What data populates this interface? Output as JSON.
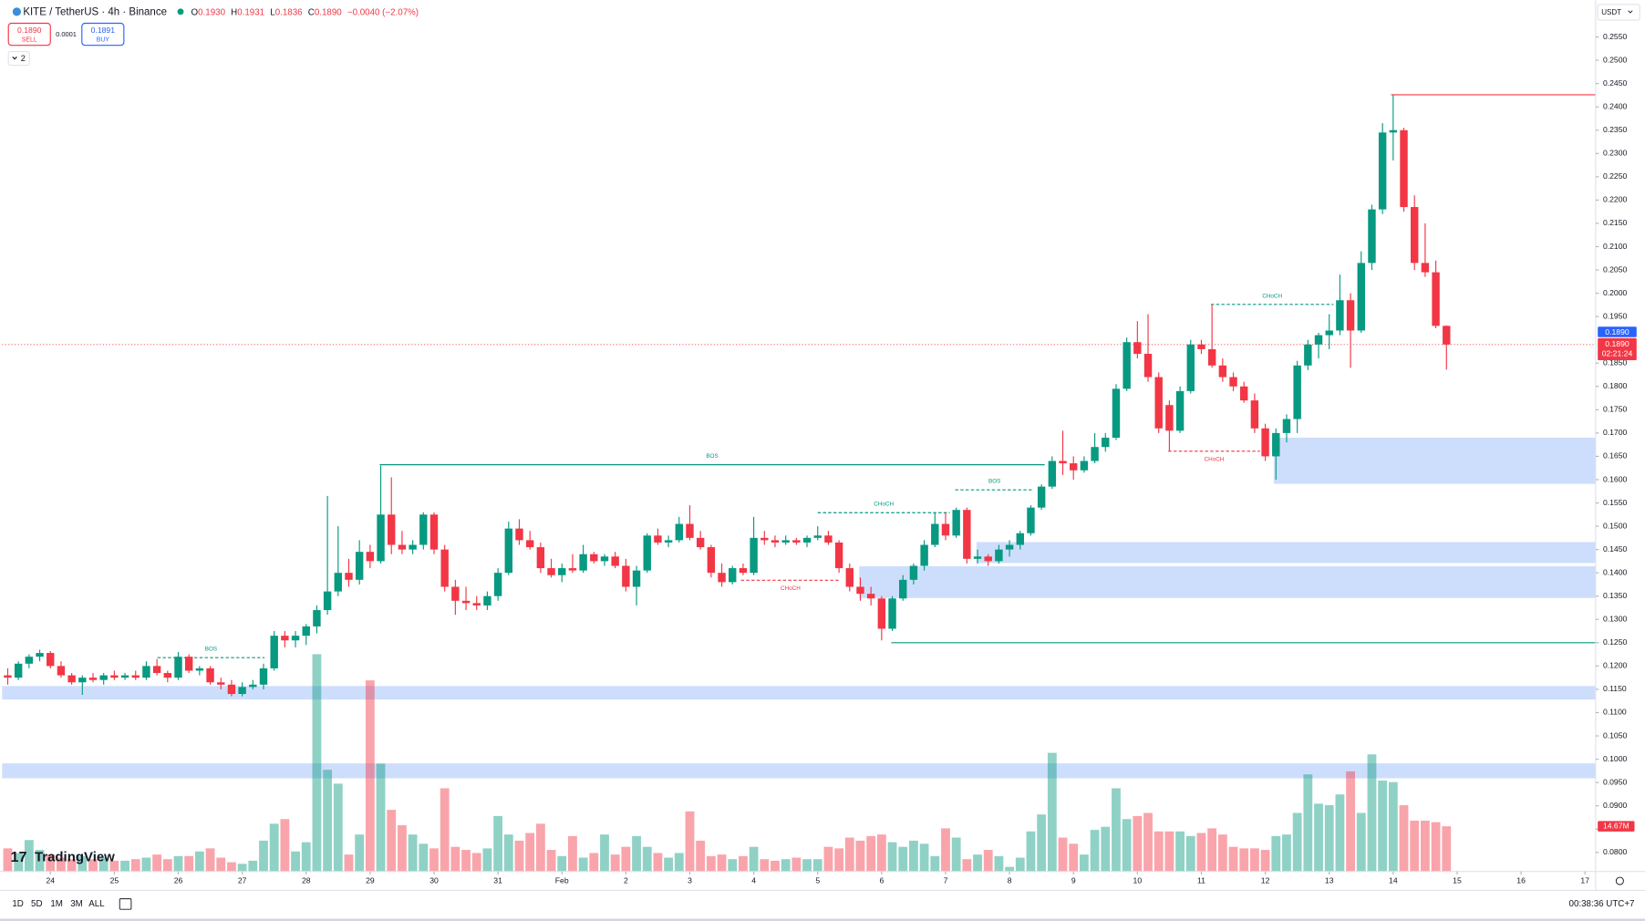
{
  "header": {
    "symbol": "KITE / TetherUS · 4h · Binance",
    "open_key": "O",
    "open": "0.1930",
    "high_key": "H",
    "high": "0.1931",
    "low_key": "L",
    "low": "0.1836",
    "close_key": "C",
    "close": "0.1890",
    "change": "−0.0040 (−2.07%)"
  },
  "trade": {
    "sell_price": "0.1890",
    "sell": "SELL",
    "spread": "0.0001",
    "buy_price": "0.1891",
    "buy": "BUY"
  },
  "indicators": "2",
  "currency": "USDT",
  "logo": "TradingView",
  "toolbar": {
    "ranges": [
      "1D",
      "5D",
      "1M",
      "3M",
      "ALL"
    ],
    "clock": "00:38:36 UTC+7"
  },
  "chart_data": {
    "type": "candlestick",
    "up_color": "#089981",
    "down_color": "#f23645",
    "zone_color": "#bcd3fb",
    "xlim": [
      -0.53,
      149.0
    ],
    "ylim": [
      0.0759,
      0.2629
    ],
    "xticks": [
      {
        "value": 4,
        "label": "24"
      },
      {
        "value": 10,
        "label": "25"
      },
      {
        "value": 16,
        "label": "26"
      },
      {
        "value": 22,
        "label": "27"
      },
      {
        "value": 28,
        "label": "28"
      },
      {
        "value": 34,
        "label": "29"
      },
      {
        "value": 40,
        "label": "30"
      },
      {
        "value": 46,
        "label": "31"
      },
      {
        "value": 52,
        "label": "Feb"
      },
      {
        "value": 58,
        "label": "2"
      },
      {
        "value": 64,
        "label": "3"
      },
      {
        "value": 70,
        "label": "4"
      },
      {
        "value": 76,
        "label": "5"
      },
      {
        "value": 82,
        "label": "6"
      },
      {
        "value": 88,
        "label": "7"
      },
      {
        "value": 94,
        "label": "8"
      },
      {
        "value": 100,
        "label": "9"
      },
      {
        "value": 106,
        "label": "10"
      },
      {
        "value": 112,
        "label": "11"
      },
      {
        "value": 118,
        "label": "12"
      },
      {
        "value": 124,
        "label": "13"
      },
      {
        "value": 130,
        "label": "14"
      },
      {
        "value": 136,
        "label": "15"
      },
      {
        "value": 142,
        "label": "16"
      },
      {
        "value": 148,
        "label": "17"
      }
    ],
    "yticks": [
      {
        "value": 0.255,
        "label": "0.2550"
      },
      {
        "value": 0.25,
        "label": "0.2500"
      },
      {
        "value": 0.245,
        "label": "0.2450"
      },
      {
        "value": 0.24,
        "label": "0.2400"
      },
      {
        "value": 0.235,
        "label": "0.2350"
      },
      {
        "value": 0.23,
        "label": "0.2300"
      },
      {
        "value": 0.225,
        "label": "0.2250"
      },
      {
        "value": 0.22,
        "label": "0.2200"
      },
      {
        "value": 0.215,
        "label": "0.2150"
      },
      {
        "value": 0.21,
        "label": "0.2100"
      },
      {
        "value": 0.205,
        "label": "0.2050"
      },
      {
        "value": 0.2,
        "label": "0.2000"
      },
      {
        "value": 0.195,
        "label": "0.1950"
      },
      {
        "value": 0.185,
        "label": "0.1850"
      },
      {
        "value": 0.18,
        "label": "0.1800"
      },
      {
        "value": 0.175,
        "label": "0.1750"
      },
      {
        "value": 0.17,
        "label": "0.1700"
      },
      {
        "value": 0.165,
        "label": "0.1650"
      },
      {
        "value": 0.16,
        "label": "0.1600"
      },
      {
        "value": 0.155,
        "label": "0.1550"
      },
      {
        "value": 0.15,
        "label": "0.1500"
      },
      {
        "value": 0.145,
        "label": "0.1450"
      },
      {
        "value": 0.14,
        "label": "0.1400"
      },
      {
        "value": 0.135,
        "label": "0.1350"
      },
      {
        "value": 0.13,
        "label": "0.1300"
      },
      {
        "value": 0.125,
        "label": "0.1250"
      },
      {
        "value": 0.12,
        "label": "0.1200"
      },
      {
        "value": 0.115,
        "label": "0.1150"
      },
      {
        "value": 0.11,
        "label": "0.1100"
      },
      {
        "value": 0.105,
        "label": "0.1050"
      },
      {
        "value": 0.1,
        "label": "0.1000"
      },
      {
        "value": 0.095,
        "label": "0.0950"
      },
      {
        "value": 0.09,
        "label": "0.0900"
      },
      {
        "value": 0.085,
        "label": "0.0850"
      },
      {
        "value": 0.08,
        "label": "0.0800"
      }
    ],
    "ohlc": [
      [
        0.118,
        0.1195,
        0.116,
        0.1175
      ],
      [
        0.1175,
        0.121,
        0.117,
        0.1205
      ],
      [
        0.1205,
        0.1225,
        0.1195,
        0.122
      ],
      [
        0.122,
        0.1235,
        0.121,
        0.1228
      ],
      [
        0.1228,
        0.1232,
        0.1195,
        0.12
      ],
      [
        0.12,
        0.121,
        0.1175,
        0.118
      ],
      [
        0.118,
        0.1185,
        0.116,
        0.1165
      ],
      [
        0.1165,
        0.118,
        0.1138,
        0.1175
      ],
      [
        0.1175,
        0.1185,
        0.1165,
        0.117
      ],
      [
        0.117,
        0.1185,
        0.116,
        0.118
      ],
      [
        0.118,
        0.119,
        0.117,
        0.1175
      ],
      [
        0.1175,
        0.1185,
        0.117,
        0.118
      ],
      [
        0.118,
        0.119,
        0.117,
        0.1175
      ],
      [
        0.1175,
        0.121,
        0.117,
        0.12
      ],
      [
        0.12,
        0.1215,
        0.118,
        0.1185
      ],
      [
        0.1185,
        0.119,
        0.1165,
        0.1175
      ],
      [
        0.1175,
        0.123,
        0.117,
        0.122
      ],
      [
        0.122,
        0.1225,
        0.1185,
        0.119
      ],
      [
        0.119,
        0.12,
        0.118,
        0.1195
      ],
      [
        0.1195,
        0.12,
        0.116,
        0.1165
      ],
      [
        0.1165,
        0.1175,
        0.115,
        0.116
      ],
      [
        0.116,
        0.117,
        0.1135,
        0.114
      ],
      [
        0.114,
        0.1165,
        0.1135,
        0.1155
      ],
      [
        0.1155,
        0.117,
        0.115,
        0.116
      ],
      [
        0.116,
        0.1205,
        0.115,
        0.1195
      ],
      [
        0.1195,
        0.1275,
        0.119,
        0.1265
      ],
      [
        0.1265,
        0.1275,
        0.124,
        0.1255
      ],
      [
        0.1255,
        0.1275,
        0.124,
        0.1265
      ],
      [
        0.1265,
        0.129,
        0.1245,
        0.1285
      ],
      [
        0.1285,
        0.133,
        0.127,
        0.132
      ],
      [
        0.132,
        0.1565,
        0.131,
        0.136
      ],
      [
        0.136,
        0.15,
        0.135,
        0.14
      ],
      [
        0.14,
        0.143,
        0.137,
        0.1385
      ],
      [
        0.1385,
        0.147,
        0.1375,
        0.1445
      ],
      [
        0.1445,
        0.146,
        0.141,
        0.1425
      ],
      [
        0.1425,
        0.163,
        0.142,
        0.1525
      ],
      [
        0.1525,
        0.1605,
        0.144,
        0.146
      ],
      [
        0.146,
        0.149,
        0.144,
        0.145
      ],
      [
        0.145,
        0.147,
        0.144,
        0.146
      ],
      [
        0.146,
        0.153,
        0.145,
        0.1525
      ],
      [
        0.1525,
        0.153,
        0.144,
        0.145
      ],
      [
        0.145,
        0.146,
        0.136,
        0.137
      ],
      [
        0.137,
        0.1385,
        0.131,
        0.134
      ],
      [
        0.134,
        0.137,
        0.132,
        0.1335
      ],
      [
        0.1335,
        0.135,
        0.132,
        0.133
      ],
      [
        0.133,
        0.136,
        0.132,
        0.135
      ],
      [
        0.135,
        0.141,
        0.134,
        0.14
      ],
      [
        0.14,
        0.151,
        0.1395,
        0.1495
      ],
      [
        0.1495,
        0.1515,
        0.146,
        0.147
      ],
      [
        0.147,
        0.149,
        0.145,
        0.1455
      ],
      [
        0.1455,
        0.1465,
        0.14,
        0.141
      ],
      [
        0.141,
        0.143,
        0.139,
        0.1395
      ],
      [
        0.1395,
        0.142,
        0.138,
        0.141
      ],
      [
        0.141,
        0.144,
        0.14,
        0.1405
      ],
      [
        0.1405,
        0.146,
        0.14,
        0.144
      ],
      [
        0.144,
        0.1445,
        0.142,
        0.1425
      ],
      [
        0.1425,
        0.144,
        0.1415,
        0.1435
      ],
      [
        0.1435,
        0.1445,
        0.141,
        0.1415
      ],
      [
        0.1415,
        0.143,
        0.136,
        0.137
      ],
      [
        0.137,
        0.1415,
        0.133,
        0.1405
      ],
      [
        0.1405,
        0.1485,
        0.14,
        0.148
      ],
      [
        0.148,
        0.1495,
        0.146,
        0.1465
      ],
      [
        0.1465,
        0.148,
        0.1455,
        0.147
      ],
      [
        0.147,
        0.152,
        0.1465,
        0.1505
      ],
      [
        0.1505,
        0.1545,
        0.147,
        0.1475
      ],
      [
        0.1475,
        0.149,
        0.145,
        0.1455
      ],
      [
        0.1455,
        0.146,
        0.139,
        0.14
      ],
      [
        0.14,
        0.142,
        0.137,
        0.138
      ],
      [
        0.138,
        0.1415,
        0.1375,
        0.141
      ],
      [
        0.141,
        0.142,
        0.1395,
        0.14
      ],
      [
        0.14,
        0.152,
        0.1395,
        0.1475
      ],
      [
        0.1475,
        0.149,
        0.146,
        0.147
      ],
      [
        0.147,
        0.148,
        0.1455,
        0.1465
      ],
      [
        0.1465,
        0.148,
        0.146,
        0.147
      ],
      [
        0.147,
        0.1475,
        0.146,
        0.1465
      ],
      [
        0.1465,
        0.148,
        0.1455,
        0.1475
      ],
      [
        0.1475,
        0.15,
        0.147,
        0.148
      ],
      [
        0.148,
        0.149,
        0.146,
        0.1465
      ],
      [
        0.1465,
        0.147,
        0.14,
        0.141
      ],
      [
        0.141,
        0.142,
        0.136,
        0.137
      ],
      [
        0.137,
        0.139,
        0.134,
        0.1355
      ],
      [
        0.1355,
        0.137,
        0.133,
        0.1345
      ],
      [
        0.1345,
        0.135,
        0.1255,
        0.128
      ],
      [
        0.128,
        0.135,
        0.1275,
        0.1345
      ],
      [
        0.1345,
        0.1395,
        0.134,
        0.1385
      ],
      [
        0.1385,
        0.142,
        0.1375,
        0.1415
      ],
      [
        0.1415,
        0.147,
        0.1405,
        0.146
      ],
      [
        0.146,
        0.153,
        0.1455,
        0.1505
      ],
      [
        0.1505,
        0.153,
        0.147,
        0.148
      ],
      [
        0.148,
        0.154,
        0.1475,
        0.1535
      ],
      [
        0.1535,
        0.154,
        0.142,
        0.143
      ],
      [
        0.143,
        0.145,
        0.142,
        0.1435
      ],
      [
        0.1435,
        0.144,
        0.1415,
        0.1425
      ],
      [
        0.1425,
        0.146,
        0.142,
        0.145
      ],
      [
        0.145,
        0.147,
        0.1435,
        0.146
      ],
      [
        0.146,
        0.149,
        0.145,
        0.1485
      ],
      [
        0.1485,
        0.1545,
        0.148,
        0.154
      ],
      [
        0.154,
        0.159,
        0.1535,
        0.1585
      ],
      [
        0.1585,
        0.165,
        0.158,
        0.164
      ],
      [
        0.164,
        0.1705,
        0.161,
        0.1635
      ],
      [
        0.1635,
        0.165,
        0.16,
        0.162
      ],
      [
        0.162,
        0.165,
        0.1615,
        0.164
      ],
      [
        0.164,
        0.17,
        0.1635,
        0.167
      ],
      [
        0.167,
        0.17,
        0.166,
        0.169
      ],
      [
        0.169,
        0.1805,
        0.1685,
        0.1795
      ],
      [
        0.1795,
        0.1905,
        0.179,
        0.1895
      ],
      [
        0.1895,
        0.194,
        0.186,
        0.187
      ],
      [
        0.187,
        0.1955,
        0.181,
        0.182
      ],
      [
        0.182,
        0.183,
        0.17,
        0.171
      ],
      [
        0.176,
        0.177,
        0.166,
        0.1705
      ],
      [
        0.1705,
        0.18,
        0.17,
        0.179
      ],
      [
        0.179,
        0.19,
        0.1785,
        0.189
      ],
      [
        0.189,
        0.19,
        0.187,
        0.188
      ],
      [
        0.188,
        0.1975,
        0.184,
        0.1845
      ],
      [
        0.1845,
        0.186,
        0.181,
        0.182
      ],
      [
        0.182,
        0.183,
        0.179,
        0.18
      ],
      [
        0.18,
        0.181,
        0.1765,
        0.177
      ],
      [
        0.177,
        0.1785,
        0.17,
        0.171
      ],
      [
        0.171,
        0.172,
        0.164,
        0.165
      ],
      [
        0.165,
        0.171,
        0.16,
        0.17
      ],
      [
        0.17,
        0.174,
        0.168,
        0.173
      ],
      [
        0.173,
        0.1855,
        0.17,
        0.1845
      ],
      [
        0.1845,
        0.19,
        0.1835,
        0.189
      ],
      [
        0.189,
        0.1915,
        0.186,
        0.191
      ],
      [
        0.191,
        0.1955,
        0.188,
        0.192
      ],
      [
        0.192,
        0.204,
        0.191,
        0.1985
      ],
      [
        0.1985,
        0.2,
        0.184,
        0.192
      ],
      [
        0.192,
        0.209,
        0.1915,
        0.2065
      ],
      [
        0.2065,
        0.219,
        0.205,
        0.218
      ],
      [
        0.218,
        0.2365,
        0.217,
        0.2345
      ],
      [
        0.2345,
        0.2425,
        0.2285,
        0.235
      ],
      [
        0.235,
        0.2355,
        0.2175,
        0.2185
      ],
      [
        0.2185,
        0.221,
        0.205,
        0.2065
      ],
      [
        0.2065,
        0.215,
        0.2035,
        0.2045
      ],
      [
        0.2045,
        0.207,
        0.1925,
        0.193
      ],
      [
        0.193,
        0.1931,
        0.1836,
        0.189
      ]
    ],
    "volume": [
      7.5,
      6.0,
      10.2,
      7.0,
      5.5,
      4.5,
      4.0,
      5.0,
      4.0,
      4.5,
      3.5,
      3.5,
      4.0,
      4.5,
      5.5,
      4.0,
      5.0,
      5.0,
      6.5,
      7.5,
      4.5,
      3.0,
      2.5,
      3.5,
      10.0,
      15.5,
      17.0,
      6.5,
      9.5,
      70.5,
      33.0,
      28.5,
      5.5,
      12.0,
      62.0,
      35.0,
      20.0,
      15.0,
      12.0,
      9.0,
      7.5,
      27.0,
      8.0,
      7.0,
      6.0,
      7.5,
      18.0,
      12.0,
      10.0,
      12.5,
      15.5,
      7.0,
      5.0,
      11.5,
      4.5,
      6.0,
      12.0,
      5.5,
      8.0,
      11.5,
      8.0,
      6.0,
      4.5,
      6.0,
      19.5,
      10.0,
      5.0,
      5.5,
      4.0,
      5.0,
      8.0,
      4.0,
      3.5,
      4.0,
      4.5,
      4.0,
      4.0,
      8.0,
      7.5,
      11.0,
      10.0,
      11.5,
      12.0,
      9.5,
      8.0,
      10.0,
      9.0,
      5.0,
      14.0,
      11.0,
      4.0,
      5.5,
      7.0,
      5.0,
      1.5,
      4.5,
      13.0,
      18.5,
      38.5,
      11.0,
      9.0,
      5.5,
      13.5,
      14.5,
      27.0,
      17.0,
      18.0,
      19.0,
      13.0,
      13.0,
      13.0,
      11.5,
      12.5,
      14.0,
      12.0,
      8.0,
      7.5,
      7.5,
      7.0,
      11.5,
      12.0,
      19.0,
      31.5,
      22.0,
      21.5,
      25.0,
      32.5,
      19.0,
      38.0,
      29.5,
      29.0,
      21.5,
      16.5,
      16.5,
      16.0,
      14.67
    ],
    "volume_label": "14.67M",
    "last_price": 0.189,
    "last_price_label": "0.1890",
    "countdown": "02:21:24",
    "marker_label": "0.1890",
    "lines": [
      {
        "price": 0.1632,
        "start": 34.9,
        "end": 97.3,
        "color": "#089981",
        "dashed": false,
        "label": "BOS"
      },
      {
        "price": 0.1218,
        "start": 14.05,
        "end": 24.1,
        "color": "#089981",
        "dashed": true,
        "label": "BOS"
      },
      {
        "price": 0.1384,
        "start": 68.8,
        "end": 78.1,
        "color": "#f23645",
        "dashed": true,
        "label": "CHoCH"
      },
      {
        "price": 0.1529,
        "start": 76.0,
        "end": 88.4,
        "color": "#089981",
        "dashed": true,
        "label": "CHoCH"
      },
      {
        "price": 0.1578,
        "start": 88.9,
        "end": 96.3,
        "color": "#089981",
        "dashed": true,
        "label": "BOS"
      },
      {
        "price": 0.1661,
        "start": 108.9,
        "end": 117.5,
        "color": "#f23645",
        "dashed": true,
        "label": "CHoCH"
      },
      {
        "price": 0.1976,
        "start": 112.9,
        "end": 124.4,
        "color": "#089981",
        "dashed": true,
        "label": "CHoCH"
      },
      {
        "price": 0.125,
        "start": 82.9,
        "end": 149.0,
        "color": "#089981",
        "dashed": false
      },
      {
        "price": 0.2426,
        "start": 129.8,
        "end": 149.0,
        "color": "#f23645",
        "dashed": false
      }
    ],
    "zones": [
      {
        "top": 0.169,
        "bottom": 0.1591,
        "start": 118.8,
        "end": 149.0
      },
      {
        "top": 0.1466,
        "bottom": 0.1421,
        "start": 90.9,
        "end": 149.0
      },
      {
        "top": 0.1414,
        "bottom": 0.1346,
        "start": 79.9,
        "end": 149.0
      },
      {
        "top": 0.1157,
        "bottom": 0.1128,
        "start": -0.53,
        "end": 149.0
      },
      {
        "top": 0.0991,
        "bottom": 0.0959,
        "start": -0.53,
        "end": 149.0
      }
    ]
  }
}
